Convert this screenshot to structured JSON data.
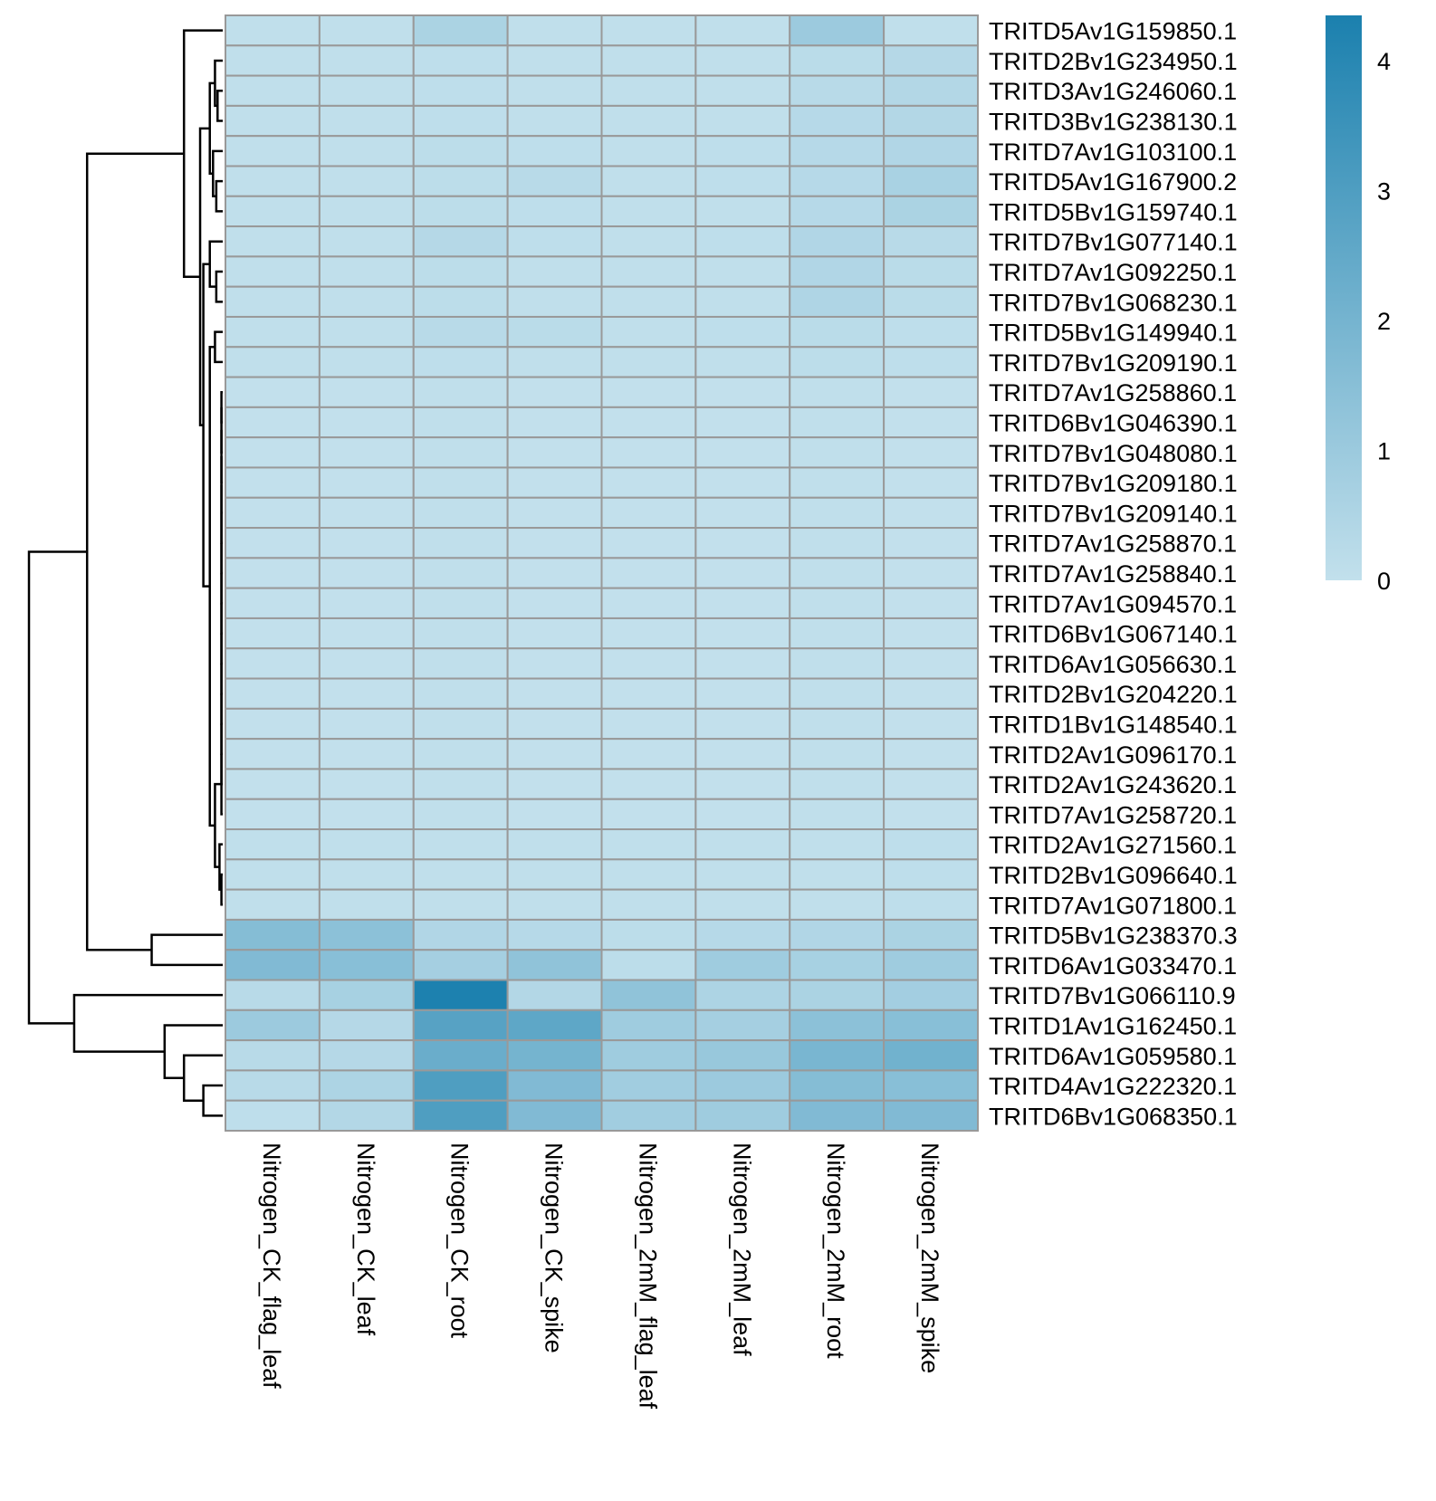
{
  "chart_data": {
    "type": "heatmap",
    "columns": [
      "Nitrogen_CK_flag_leaf",
      "Nitrogen_CK_leaf",
      "Nitrogen_CK_root",
      "Nitrogen_CK_spike",
      "Nitrogen_2mM_flag_leaf",
      "Nitrogen_2mM_leaf",
      "Nitrogen_2mM_root",
      "Nitrogen_2mM_spike"
    ],
    "rows": [
      "TRITD5Av1G159850.1",
      "TRITD2Bv1G234950.1",
      "TRITD3Av1G246060.1",
      "TRITD3Bv1G238130.1",
      "TRITD7Av1G103100.1",
      "TRITD5Av1G167900.2",
      "TRITD5Bv1G159740.1",
      "TRITD7Bv1G077140.1",
      "TRITD7Av1G092250.1",
      "TRITD7Bv1G068230.1",
      "TRITD5Bv1G149940.1",
      "TRITD7Bv1G209190.1",
      "TRITD7Av1G258860.1",
      "TRITD6Bv1G046390.1",
      "TRITD7Bv1G048080.1",
      "TRITD7Bv1G209180.1",
      "TRITD7Bv1G209140.1",
      "TRITD7Av1G258870.1",
      "TRITD7Av1G258840.1",
      "TRITD7Av1G094570.1",
      "TRITD6Bv1G067140.1",
      "TRITD6Av1G056630.1",
      "TRITD2Bv1G204220.1",
      "TRITD1Bv1G148540.1",
      "TRITD2Av1G096170.1",
      "TRITD2Av1G243620.1",
      "TRITD7Av1G258720.1",
      "TRITD2Av1G271560.1",
      "TRITD2Bv1G096640.1",
      "TRITD7Av1G071800.1",
      "TRITD5Bv1G238370.3",
      "TRITD6Av1G033470.1",
      "TRITD7Bv1G066110.9",
      "TRITD1Av1G162450.1",
      "TRITD6Av1G059580.1",
      "TRITD4Av1G222320.1",
      "TRITD6Bv1G068350.1"
    ],
    "values": [
      [
        0.05,
        0.05,
        0.6,
        0.05,
        0.05,
        0.05,
        1.0,
        0.05
      ],
      [
        0.05,
        0.05,
        0.1,
        0.05,
        0.05,
        0.05,
        0.2,
        0.35
      ],
      [
        0.05,
        0.05,
        0.1,
        0.05,
        0.05,
        0.05,
        0.25,
        0.4
      ],
      [
        0.05,
        0.05,
        0.1,
        0.05,
        0.05,
        0.05,
        0.3,
        0.4
      ],
      [
        0.05,
        0.05,
        0.15,
        0.1,
        0.05,
        0.1,
        0.3,
        0.45
      ],
      [
        0.05,
        0.05,
        0.15,
        0.25,
        0.05,
        0.1,
        0.3,
        0.65
      ],
      [
        0.05,
        0.05,
        0.15,
        0.1,
        0.05,
        0.05,
        0.3,
        0.6
      ],
      [
        0.05,
        0.05,
        0.35,
        0.1,
        0.05,
        0.1,
        0.45,
        0.25
      ],
      [
        0.05,
        0.05,
        0.15,
        0.05,
        0.05,
        0.05,
        0.45,
        0.2
      ],
      [
        0.05,
        0.05,
        0.15,
        0.05,
        0.05,
        0.05,
        0.5,
        0.2
      ],
      [
        0.05,
        0.05,
        0.25,
        0.2,
        0.05,
        0.1,
        0.2,
        0.1
      ],
      [
        0.05,
        0.05,
        0.1,
        0.05,
        0.05,
        0.05,
        0.15,
        0.1
      ],
      [
        0.0,
        0.0,
        0.05,
        0.0,
        0.0,
        0.0,
        0.05,
        0.0
      ],
      [
        0.0,
        0.0,
        0.05,
        0.0,
        0.0,
        0.0,
        0.05,
        0.0
      ],
      [
        0.0,
        0.0,
        0.05,
        0.0,
        0.0,
        0.0,
        0.05,
        0.0
      ],
      [
        0.0,
        0.0,
        0.05,
        0.0,
        0.0,
        0.0,
        0.05,
        0.0
      ],
      [
        0.0,
        0.0,
        0.05,
        0.0,
        0.0,
        0.0,
        0.05,
        0.0
      ],
      [
        0.0,
        0.0,
        0.05,
        0.0,
        0.0,
        0.0,
        0.05,
        0.0
      ],
      [
        0.0,
        0.0,
        0.05,
        0.0,
        0.0,
        0.0,
        0.05,
        0.0
      ],
      [
        0.0,
        0.0,
        0.05,
        0.0,
        0.0,
        0.0,
        0.05,
        0.0
      ],
      [
        0.0,
        0.0,
        0.05,
        0.0,
        0.0,
        0.0,
        0.05,
        0.0
      ],
      [
        0.0,
        0.0,
        0.05,
        0.0,
        0.0,
        0.0,
        0.05,
        0.0
      ],
      [
        0.0,
        0.0,
        0.05,
        0.0,
        0.0,
        0.0,
        0.05,
        0.0
      ],
      [
        0.0,
        0.0,
        0.05,
        0.0,
        0.0,
        0.0,
        0.05,
        0.0
      ],
      [
        0.0,
        0.0,
        0.05,
        0.0,
        0.0,
        0.0,
        0.05,
        0.0
      ],
      [
        0.0,
        0.0,
        0.05,
        0.0,
        0.0,
        0.0,
        0.05,
        0.0
      ],
      [
        0.0,
        0.0,
        0.05,
        0.0,
        0.0,
        0.0,
        0.05,
        0.0
      ],
      [
        0.05,
        0.05,
        0.05,
        0.05,
        0.05,
        0.05,
        0.05,
        0.1
      ],
      [
        0.05,
        0.05,
        0.05,
        0.05,
        0.05,
        0.05,
        0.05,
        0.1
      ],
      [
        0.05,
        0.05,
        0.05,
        0.05,
        0.05,
        0.05,
        0.05,
        0.1
      ],
      [
        1.6,
        1.4,
        0.45,
        0.3,
        0.15,
        0.3,
        0.45,
        0.6
      ],
      [
        1.7,
        1.5,
        0.75,
        1.3,
        0.15,
        0.9,
        0.7,
        0.9
      ],
      [
        0.25,
        0.7,
        4.3,
        0.4,
        1.3,
        0.55,
        0.6,
        0.8
      ],
      [
        1.0,
        0.35,
        2.8,
        2.6,
        0.9,
        0.75,
        1.4,
        1.5
      ],
      [
        0.25,
        0.35,
        2.3,
        2.0,
        0.9,
        1.1,
        1.9,
        2.1
      ],
      [
        0.25,
        0.55,
        3.0,
        1.7,
        0.85,
        1.0,
        1.6,
        1.5
      ],
      [
        0.1,
        0.4,
        3.0,
        1.7,
        0.85,
        0.9,
        1.7,
        1.7
      ]
    ],
    "colorbar": {
      "min": 0,
      "max": 4.35,
      "ticks": [
        0,
        1,
        2,
        3,
        4
      ],
      "color_low": "#c2e0ec",
      "color_high": "#1b80ae"
    },
    "cell_border_color": "#999999",
    "row_dendrogram": true,
    "row_dendrogram_merges": [
      [
        "TRITD3Av1G246060.1",
        "TRITD3Bv1G238130.1",
        0.08
      ],
      [
        "TRITD2Bv1G234950.1",
        "m1",
        0.12
      ],
      [
        "TRITD5Av1G167900.2",
        "TRITD5Bv1G159740.1",
        0.1
      ],
      [
        "TRITD7Av1G103100.1",
        "m3",
        0.15
      ],
      [
        "m2",
        "m4",
        0.2
      ],
      [
        "TRITD7Av1G092250.1",
        "TRITD7Bv1G068230.1",
        0.1
      ],
      [
        "TRITD7Bv1G077140.1",
        "m6",
        0.2
      ],
      [
        "TRITD5Bv1G149940.1",
        "TRITD7Bv1G209190.1",
        0.12
      ],
      [
        "TRITD7Av1G258860.1",
        "TRITD6Bv1G046390.1",
        0.02
      ],
      [
        "m9",
        "TRITD7Bv1G048080.1",
        0.02
      ],
      [
        "m10",
        "TRITD7Bv1G209180.1",
        0.02
      ],
      [
        "m11",
        "TRITD7Bv1G209140.1",
        0.02
      ],
      [
        "m12",
        "TRITD7Av1G258870.1",
        0.02
      ],
      [
        "m13",
        "TRITD7Av1G258840.1",
        0.02
      ],
      [
        "m14",
        "TRITD7Av1G094570.1",
        0.02
      ],
      [
        "m15",
        "TRITD6Bv1G067140.1",
        0.02
      ],
      [
        "m16",
        "TRITD6Av1G056630.1",
        0.02
      ],
      [
        "m17",
        "TRITD2Bv1G204220.1",
        0.02
      ],
      [
        "m18",
        "TRITD1Bv1G148540.1",
        0.02
      ],
      [
        "m19",
        "TRITD2Av1G096170.1",
        0.02
      ],
      [
        "m20",
        "TRITD2Av1G243620.1",
        0.02
      ],
      [
        "m21",
        "TRITD7Av1G258720.1",
        0.02
      ],
      [
        "TRITD2Bv1G096640.1",
        "TRITD7Av1G071800.1",
        0.02
      ],
      [
        "TRITD2Av1G271560.1",
        "m23",
        0.05
      ],
      [
        "m22",
        "m24",
        0.12
      ],
      [
        "m8",
        "m25",
        0.2
      ],
      [
        "m7",
        "m26",
        0.3
      ],
      [
        "m5",
        "m27",
        0.35
      ],
      [
        "TRITD5Av1G159850.1",
        "m28",
        0.6
      ],
      [
        "TRITD5Bv1G238370.3",
        "TRITD6Av1G033470.1",
        1.1
      ],
      [
        "m29",
        "m30",
        2.1
      ],
      [
        "TRITD4Av1G222320.1",
        "TRITD6Bv1G068350.1",
        0.3
      ],
      [
        "TRITD6Av1G059580.1",
        "m32",
        0.6
      ],
      [
        "TRITD1Av1G162450.1",
        "m33",
        0.9
      ],
      [
        "TRITD7Bv1G066110.9",
        "m34",
        2.3
      ],
      [
        "m31",
        "m35",
        3.0
      ]
    ]
  }
}
